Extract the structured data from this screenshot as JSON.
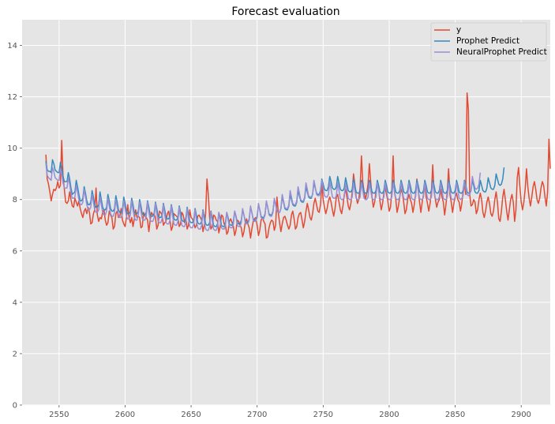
{
  "chart_data": {
    "type": "line",
    "title": "Forecast evaluation",
    "xlabel": "",
    "ylabel": "",
    "xlim": [
      2522,
      2922
    ],
    "ylim": [
      0,
      15
    ],
    "grid": true,
    "legend_position": "top-right",
    "x_start": 2540,
    "x_step": 1,
    "xticks": [
      2550,
      2600,
      2650,
      2700,
      2750,
      2800,
      2850,
      2900
    ],
    "xtick_labels": [
      "2550",
      "2600",
      "2650",
      "2700",
      "2750",
      "2800",
      "2850",
      "2900"
    ],
    "yticks": [
      0,
      2,
      4,
      6,
      8,
      10,
      12,
      14
    ],
    "ytick_labels": [
      "0",
      "2",
      "4",
      "6",
      "8",
      "10",
      "12",
      "14"
    ],
    "series": [
      {
        "name": "y",
        "color": "#E24A33",
        "values": [
          9.75,
          8.8,
          8.6,
          8.3,
          7.95,
          8.2,
          8.4,
          8.35,
          8.45,
          8.7,
          8.45,
          8.55,
          10.3,
          8.9,
          8.4,
          7.9,
          7.85,
          7.95,
          8.3,
          8.0,
          7.75,
          7.7,
          8.05,
          7.9,
          7.75,
          7.95,
          7.65,
          7.45,
          7.3,
          7.55,
          7.65,
          7.45,
          7.7,
          7.5,
          7.05,
          7.1,
          7.45,
          7.6,
          8.45,
          7.4,
          7.15,
          7.3,
          7.25,
          7.5,
          7.6,
          7.2,
          7.0,
          7.1,
          7.55,
          7.4,
          7.3,
          6.85,
          6.95,
          7.45,
          7.55,
          7.3,
          7.35,
          7.65,
          7.2,
          7.05,
          6.95,
          7.3,
          7.8,
          7.3,
          7.1,
          7.3,
          6.95,
          7.25,
          7.6,
          7.3,
          7.35,
          7.3,
          6.9,
          6.95,
          7.5,
          7.35,
          7.3,
          7.2,
          6.75,
          7.2,
          7.5,
          7.4,
          7.45,
          7.3,
          6.85,
          7.0,
          7.55,
          7.5,
          7.4,
          7.0,
          7.1,
          7.15,
          7.45,
          7.55,
          7.2,
          6.8,
          6.95,
          7.45,
          7.4,
          7.35,
          7.3,
          6.95,
          7.05,
          7.5,
          7.4,
          7.1,
          7.3,
          6.85,
          7.0,
          7.6,
          7.3,
          7.25,
          7.1,
          6.9,
          7.0,
          7.35,
          7.4,
          7.3,
          7.2,
          6.75,
          7.0,
          7.45,
          8.8,
          8.2,
          7.3,
          6.85,
          6.95,
          7.4,
          7.35,
          7.2,
          7.15,
          6.7,
          6.95,
          7.4,
          7.35,
          7.05,
          7.0,
          6.65,
          6.75,
          7.15,
          7.25,
          7.1,
          6.95,
          6.6,
          6.8,
          7.2,
          7.15,
          7.0,
          6.9,
          6.55,
          6.75,
          7.1,
          7.25,
          7.05,
          6.9,
          6.5,
          6.85,
          7.15,
          7.25,
          7.3,
          7.0,
          6.6,
          6.8,
          7.2,
          7.3,
          7.15,
          7.05,
          6.5,
          6.55,
          6.9,
          7.1,
          7.2,
          7.15,
          6.8,
          7.0,
          8.1,
          7.5,
          7.1,
          6.75,
          7.05,
          7.3,
          7.35,
          7.2,
          7.0,
          6.85,
          7.0,
          7.4,
          7.55,
          7.25,
          6.85,
          6.95,
          7.3,
          7.45,
          7.5,
          7.2,
          6.9,
          7.15,
          7.55,
          7.85,
          7.6,
          7.3,
          7.2,
          7.45,
          7.85,
          8.05,
          7.8,
          7.55,
          7.5,
          7.8,
          8.6,
          8.0,
          7.7,
          7.45,
          7.65,
          7.95,
          8.1,
          7.9,
          7.6,
          7.35,
          7.65,
          8.1,
          8.2,
          7.9,
          7.6,
          7.45,
          7.75,
          8.2,
          8.4,
          8.1,
          7.75,
          7.6,
          7.85,
          8.3,
          9.0,
          8.6,
          8.1,
          7.85,
          8.0,
          8.5,
          9.7,
          8.7,
          8.3,
          8.0,
          8.25,
          8.6,
          9.4,
          8.7,
          8.1,
          7.7,
          7.9,
          8.3,
          8.6,
          8.4,
          7.95,
          7.6,
          7.85,
          8.25,
          8.45,
          8.2,
          7.95,
          7.55,
          7.7,
          8.3,
          9.7,
          8.3,
          8.0,
          7.5,
          7.75,
          8.1,
          8.4,
          8.25,
          7.9,
          7.45,
          7.6,
          8.0,
          8.2,
          8.0,
          7.85,
          7.5,
          7.8,
          8.2,
          8.8,
          8.35,
          7.9,
          7.5,
          7.9,
          8.2,
          8.6,
          8.1,
          7.85,
          7.55,
          7.85,
          8.3,
          9.35,
          8.3,
          8.0,
          7.7,
          7.9,
          8.0,
          8.4,
          8.1,
          7.9,
          7.4,
          7.8,
          8.3,
          9.2,
          8.2,
          7.9,
          7.5,
          7.85,
          8.1,
          8.25,
          8.0,
          7.9,
          7.55,
          7.85,
          8.3,
          8.6,
          8.2,
          12.15,
          11.5,
          8.2,
          7.75,
          7.8,
          8.0,
          7.9,
          7.45,
          7.6,
          8.0,
          8.25,
          8.0,
          7.5,
          7.3,
          7.55,
          7.9,
          8.1,
          7.85,
          7.45,
          7.35,
          7.55,
          8.0,
          8.3,
          7.9,
          7.25,
          7.15,
          7.55,
          8.1,
          8.4,
          8.0,
          7.55,
          7.2,
          7.6,
          8.0,
          8.2,
          7.9,
          7.15,
          7.6,
          8.85,
          9.25,
          8.5,
          7.9,
          7.6,
          7.9,
          8.4,
          9.2,
          8.5,
          8.05,
          7.75,
          8.1,
          8.5,
          8.7,
          8.4,
          8.0,
          7.85,
          8.05,
          8.45,
          8.7,
          8.55,
          8.1,
          7.75,
          8.3,
          10.35,
          9.2
        ]
      },
      {
        "name": "Prophet Predict",
        "color": "#348ABD",
        "values": [
          9.5,
          9.15,
          9.1,
          9.1,
          9.05,
          9.55,
          9.4,
          9.15,
          9.1,
          9.05,
          9.05,
          9.45,
          9.25,
          8.9,
          8.7,
          8.7,
          8.7,
          9.05,
          8.8,
          8.45,
          8.2,
          8.25,
          8.3,
          8.75,
          8.5,
          8.2,
          7.95,
          7.95,
          8.05,
          8.5,
          8.25,
          7.95,
          7.8,
          7.8,
          7.9,
          8.35,
          8.1,
          7.8,
          7.7,
          7.7,
          7.8,
          8.3,
          8.0,
          7.7,
          7.6,
          7.6,
          7.7,
          8.2,
          7.95,
          7.65,
          7.55,
          7.55,
          7.65,
          8.15,
          7.9,
          7.6,
          7.5,
          7.5,
          7.6,
          8.1,
          7.85,
          7.55,
          7.45,
          7.45,
          7.55,
          8.05,
          7.8,
          7.5,
          7.45,
          7.45,
          7.55,
          8.0,
          7.75,
          7.45,
          7.4,
          7.4,
          7.5,
          7.95,
          7.7,
          7.4,
          7.35,
          7.35,
          7.45,
          7.9,
          7.65,
          7.35,
          7.3,
          7.3,
          7.4,
          7.85,
          7.6,
          7.3,
          7.25,
          7.25,
          7.35,
          7.8,
          7.55,
          7.25,
          7.2,
          7.2,
          7.3,
          7.75,
          7.5,
          7.2,
          7.15,
          7.15,
          7.25,
          7.7,
          7.45,
          7.15,
          7.1,
          7.1,
          7.2,
          7.65,
          7.4,
          7.1,
          7.05,
          7.05,
          7.15,
          7.6,
          7.35,
          7.05,
          7.0,
          7.0,
          7.1,
          7.55,
          7.3,
          7.0,
          6.95,
          6.95,
          7.05,
          7.5,
          7.3,
          7.0,
          6.95,
          6.95,
          7.1,
          7.5,
          7.3,
          7.05,
          7.0,
          7.0,
          7.15,
          7.55,
          7.35,
          7.1,
          7.05,
          7.05,
          7.2,
          7.6,
          7.4,
          7.15,
          7.1,
          7.1,
          7.25,
          7.7,
          7.5,
          7.25,
          7.2,
          7.2,
          7.35,
          7.8,
          7.6,
          7.35,
          7.3,
          7.3,
          7.45,
          7.9,
          7.7,
          7.45,
          7.4,
          7.4,
          7.55,
          8.0,
          7.8,
          7.55,
          7.5,
          7.5,
          7.65,
          8.1,
          7.9,
          7.65,
          7.6,
          7.6,
          7.75,
          8.2,
          8.0,
          7.8,
          7.75,
          7.75,
          7.9,
          8.35,
          8.15,
          7.95,
          7.9,
          7.9,
          8.05,
          8.5,
          8.3,
          8.1,
          8.05,
          8.05,
          8.2,
          8.65,
          8.45,
          8.25,
          8.2,
          8.2,
          8.35,
          8.8,
          8.6,
          8.4,
          8.35,
          8.35,
          8.5,
          8.9,
          8.7,
          8.45,
          8.4,
          8.4,
          8.5,
          8.9,
          8.65,
          8.4,
          8.35,
          8.35,
          8.45,
          8.85,
          8.6,
          8.35,
          8.3,
          8.3,
          8.4,
          8.8,
          8.55,
          8.3,
          8.25,
          8.25,
          8.35,
          8.75,
          8.55,
          8.3,
          8.25,
          8.25,
          8.35,
          8.75,
          8.55,
          8.3,
          8.25,
          8.25,
          8.35,
          8.75,
          8.55,
          8.3,
          8.25,
          8.25,
          8.35,
          8.75,
          8.55,
          8.3,
          8.25,
          8.25,
          8.35,
          8.75,
          8.55,
          8.3,
          8.25,
          8.25,
          8.35,
          8.75,
          8.55,
          8.3,
          8.25,
          8.25,
          8.35,
          8.75,
          8.55,
          8.3,
          8.25,
          8.25,
          8.35,
          8.75,
          8.55,
          8.3,
          8.25,
          8.25,
          8.35,
          8.75,
          8.55,
          8.3,
          8.25,
          8.25,
          8.35,
          8.75,
          8.55,
          8.3,
          8.25,
          8.25,
          8.35,
          8.75,
          8.55,
          8.3,
          8.25,
          8.25,
          8.35,
          8.75,
          8.55,
          8.3,
          8.25,
          8.25,
          8.35,
          8.75,
          8.55,
          8.3,
          8.25,
          8.25,
          8.35,
          8.75,
          8.55,
          8.3,
          8.25,
          8.25,
          8.35,
          8.75,
          8.55,
          8.3,
          8.25,
          8.25,
          8.35,
          8.75,
          8.55,
          8.35,
          8.3,
          8.3,
          8.45,
          8.85,
          8.65,
          8.45,
          8.4,
          8.4,
          8.55,
          9.0,
          8.8,
          8.6,
          8.55,
          8.6,
          8.8,
          9.25
        ]
      },
      {
        "name": "NeuralProphet Predict",
        "color": "#988ED5",
        "values": [
          9.4,
          8.95,
          8.85,
          8.8,
          8.75,
          9.25,
          9.1,
          8.85,
          8.8,
          8.75,
          8.75,
          9.2,
          9.0,
          8.65,
          8.45,
          8.45,
          8.45,
          8.85,
          8.6,
          8.25,
          8.05,
          8.05,
          8.1,
          8.55,
          8.3,
          8.0,
          7.8,
          7.8,
          7.9,
          8.4,
          8.1,
          7.8,
          7.6,
          7.6,
          7.7,
          8.2,
          7.9,
          7.6,
          7.5,
          7.5,
          7.6,
          8.1,
          7.8,
          7.5,
          7.4,
          7.4,
          7.55,
          8.05,
          7.75,
          7.45,
          7.35,
          7.35,
          7.5,
          8.0,
          7.7,
          7.4,
          7.3,
          7.3,
          7.45,
          7.95,
          7.65,
          7.35,
          7.25,
          7.25,
          7.4,
          7.95,
          7.6,
          7.3,
          7.2,
          7.2,
          7.4,
          7.9,
          7.55,
          7.25,
          7.2,
          7.2,
          7.35,
          7.9,
          7.5,
          7.2,
          7.15,
          7.15,
          7.3,
          7.85,
          7.45,
          7.15,
          7.1,
          7.1,
          7.25,
          7.8,
          7.4,
          7.1,
          7.05,
          7.05,
          7.2,
          7.75,
          7.35,
          7.05,
          7.0,
          7.0,
          7.15,
          7.7,
          7.3,
          7.0,
          6.95,
          6.95,
          7.1,
          7.65,
          7.25,
          6.95,
          6.9,
          6.9,
          7.05,
          7.6,
          7.2,
          6.9,
          6.85,
          6.85,
          7.0,
          7.55,
          7.15,
          6.85,
          6.8,
          6.8,
          6.95,
          7.5,
          7.15,
          6.85,
          6.8,
          6.8,
          6.95,
          7.5,
          7.15,
          6.9,
          6.85,
          6.85,
          7.0,
          7.5,
          7.2,
          6.95,
          6.9,
          6.9,
          7.05,
          7.55,
          7.3,
          7.0,
          6.95,
          6.95,
          7.1,
          7.65,
          7.4,
          7.1,
          7.05,
          7.05,
          7.2,
          7.75,
          7.5,
          7.2,
          7.15,
          7.15,
          7.3,
          7.85,
          7.6,
          7.3,
          7.25,
          7.25,
          7.4,
          7.95,
          7.7,
          7.4,
          7.35,
          7.35,
          7.5,
          8.05,
          7.8,
          7.55,
          7.5,
          7.5,
          7.65,
          8.2,
          7.95,
          7.7,
          7.65,
          7.65,
          7.8,
          8.35,
          8.1,
          7.85,
          7.8,
          7.8,
          7.95,
          8.5,
          8.25,
          8.0,
          7.95,
          7.95,
          8.1,
          8.65,
          8.4,
          8.15,
          8.1,
          8.1,
          8.2,
          8.75,
          8.5,
          8.2,
          8.15,
          8.15,
          8.25,
          8.75,
          8.45,
          8.15,
          8.1,
          8.1,
          8.2,
          8.7,
          8.4,
          8.1,
          8.05,
          8.05,
          8.15,
          8.65,
          8.35,
          8.05,
          8.0,
          8.0,
          8.1,
          8.65,
          8.35,
          8.05,
          8.0,
          8.0,
          8.1,
          8.65,
          8.35,
          8.05,
          8.0,
          8.0,
          8.1,
          8.65,
          8.35,
          8.05,
          8.0,
          8.0,
          8.1,
          8.65,
          8.35,
          8.05,
          8.0,
          8.0,
          8.1,
          8.65,
          8.35,
          8.05,
          8.0,
          8.0,
          8.1,
          8.65,
          8.35,
          8.05,
          8.0,
          8.0,
          8.1,
          8.65,
          8.35,
          8.05,
          8.0,
          8.0,
          8.1,
          8.65,
          8.35,
          8.05,
          8.0,
          8.0,
          8.1,
          8.65,
          8.35,
          8.05,
          8.0,
          8.0,
          8.1,
          8.65,
          8.35,
          8.05,
          8.0,
          8.0,
          8.1,
          8.65,
          8.35,
          8.05,
          8.0,
          8.0,
          8.1,
          8.65,
          8.35,
          8.05,
          8.0,
          8.0,
          8.1,
          8.65,
          8.35,
          8.05,
          8.0,
          8.0,
          8.1,
          8.65,
          8.35,
          8.05,
          8.0,
          8.0,
          8.1,
          8.65,
          8.35,
          8.05,
          8.0,
          8.05,
          8.15,
          8.7,
          8.45,
          8.2,
          8.15,
          8.2,
          8.35,
          8.9,
          8.65,
          8.45,
          8.4,
          8.45,
          8.6,
          9.05
        ]
      }
    ]
  }
}
